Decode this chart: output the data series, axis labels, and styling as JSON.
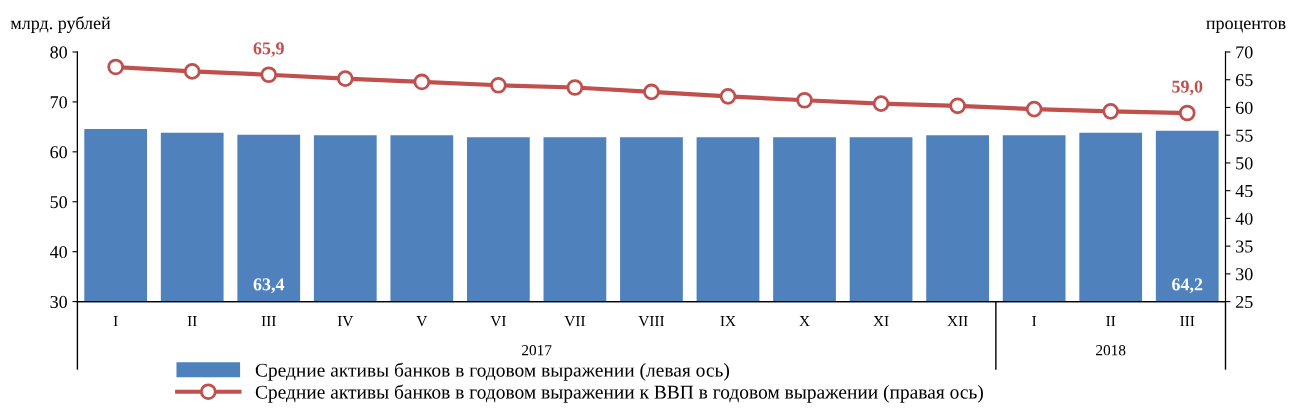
{
  "chart_data": {
    "type": "bar",
    "ylabel": "млрд. рублей",
    "y2label": "процентов",
    "categories": [
      "I",
      "II",
      "III",
      "IV",
      "V",
      "VI",
      "VII",
      "VIII",
      "IX",
      "X",
      "XI",
      "XII",
      "I",
      "II",
      "III"
    ],
    "series": [
      {
        "name": "Средние активы банков в годовом выражении (левая ось)",
        "color": "#4f81bd",
        "values": [
          64.6,
          63.8,
          63.4,
          63.3,
          63.3,
          62.9,
          62.9,
          62.9,
          62.9,
          62.9,
          62.9,
          63.3,
          63.3,
          63.8,
          64.2
        ],
        "value_labels": [
          null,
          null,
          "63,4",
          null,
          null,
          null,
          null,
          null,
          null,
          null,
          null,
          null,
          null,
          null,
          "64,2"
        ]
      },
      {
        "name": "Средние активы банков в годовом выражении к ВВП в годовом выражении (правая ось)",
        "type": "line",
        "axis": "y2",
        "color": "#c0504d",
        "marker": "circle",
        "values": [
          67.3,
          66.5,
          65.9,
          65.2,
          64.6,
          64.0,
          63.6,
          62.8,
          62.0,
          61.3,
          60.7,
          60.3,
          59.7,
          59.3,
          59.0
        ],
        "value_labels": [
          null,
          null,
          "65,9",
          null,
          null,
          null,
          null,
          null,
          null,
          null,
          null,
          null,
          null,
          null,
          "59,0"
        ]
      }
    ],
    "ylim": [
      30,
      80
    ],
    "yticks": [
      30,
      40,
      50,
      60,
      70,
      80
    ],
    "y2lim": [
      25,
      70
    ],
    "y2ticks": [
      25,
      30,
      35,
      40,
      45,
      50,
      55,
      60,
      65,
      70
    ],
    "annotations": [
      "2017",
      "2018"
    ],
    "grid": false,
    "legend": "bottom"
  }
}
